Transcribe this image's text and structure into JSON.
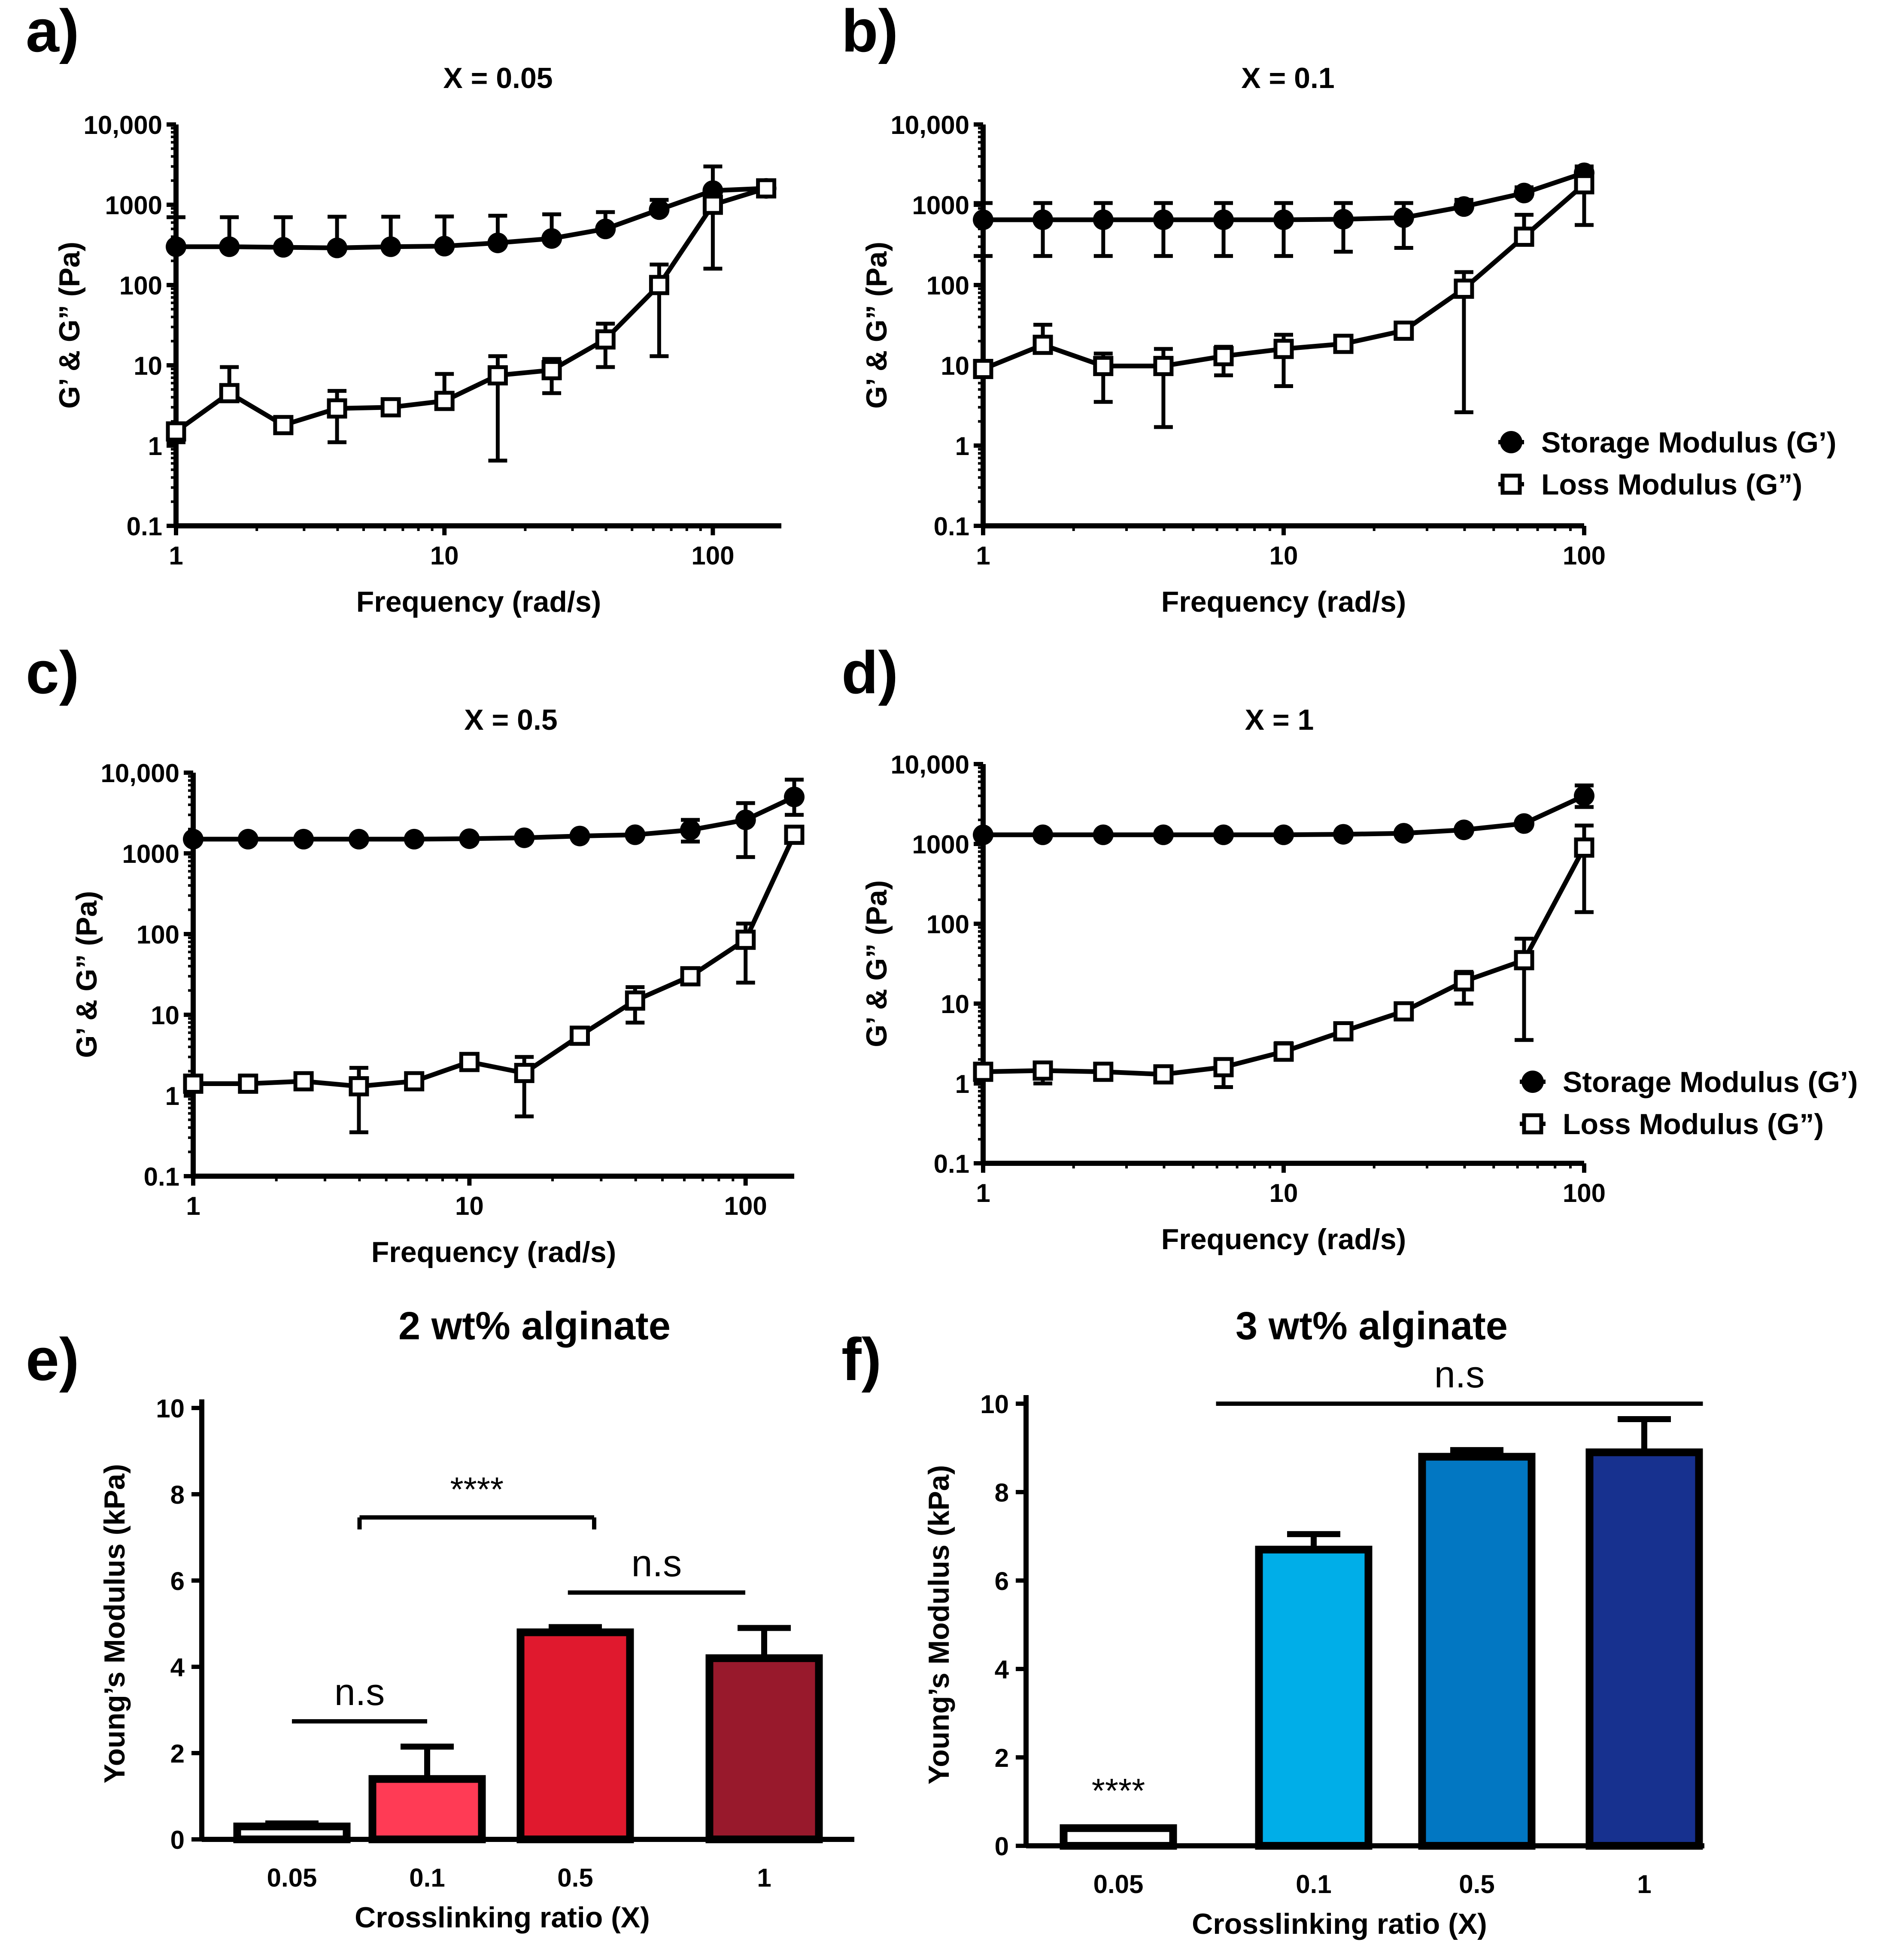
{
  "chart_data": [
    {
      "type": "line",
      "panel_label": "a)",
      "title": "X = 0.05",
      "xlabel": "Frequency (rad/s)",
      "ylabel": "G’ & G” (Pa)",
      "x_scale": "log",
      "y_scale": "log",
      "xlim": [
        1,
        180
      ],
      "ylim": [
        0.1,
        10000
      ],
      "x_ticks": [
        1,
        10,
        100
      ],
      "x_tick_labels": [
        "1",
        "10",
        "100"
      ],
      "y_ticks": [
        0.1,
        1,
        10,
        100,
        1000,
        10000
      ],
      "y_tick_labels": [
        "0.1",
        "1",
        "10",
        "100",
        "1000",
        "10,000"
      ],
      "x": [
        1,
        1.58,
        2.51,
        3.98,
        6.31,
        10,
        15.8,
        25.1,
        39.8,
        63.1,
        100,
        158
      ],
      "series": [
        {
          "name": "Storage Modulus (G’)",
          "marker": "filled-circle",
          "values": [
            300,
            300,
            295,
            290,
            300,
            305,
            335,
            380,
            500,
            870,
            1500,
            1600
          ],
          "error_up": [
            700,
            700,
            700,
            710,
            710,
            715,
            730,
            760,
            810,
            1150,
            1550,
            1500
          ],
          "error_down": null
        },
        {
          "name": "Loss Modulus (G”)",
          "marker": "open-square",
          "values": [
            1.5,
            4.5,
            1.8,
            2.9,
            3.0,
            3.6,
            7.5,
            8.7,
            21,
            100,
            1000,
            1600
          ],
          "error_up": [
            0,
            9.5,
            0,
            4.8,
            0,
            7.8,
            13,
            12,
            33,
            180,
            3000,
            0
          ],
          "error_down": [
            1.1,
            0,
            0,
            1.1,
            0,
            0,
            0.65,
            4.5,
            9.5,
            13,
            160,
            0
          ]
        }
      ]
    },
    {
      "type": "line",
      "panel_label": "b)",
      "title": "X = 0.1",
      "xlabel": "Frequency (rad/s)",
      "ylabel": "G’ & G” (Pa)",
      "x_scale": "log",
      "y_scale": "log",
      "xlim": [
        1,
        100
      ],
      "ylim": [
        0.1,
        10000
      ],
      "x_ticks": [
        1,
        10,
        100
      ],
      "x_tick_labels": [
        "1",
        "10",
        "100"
      ],
      "y_ticks": [
        0.1,
        1,
        10,
        100,
        1000,
        10000
      ],
      "y_tick_labels": [
        "0.1",
        "1",
        "10",
        "100",
        "1000",
        "10,000"
      ],
      "x": [
        1,
        1.58,
        2.51,
        3.98,
        6.31,
        10,
        15.8,
        25.1,
        39.8,
        63.1,
        100
      ],
      "legend": [
        "Storage Modulus (G’)",
        "Loss Modulus (G”)"
      ],
      "legend_position": "right",
      "series": [
        {
          "name": "Storage Modulus (G’)",
          "marker": "filled-circle",
          "values": [
            650,
            650,
            650,
            650,
            650,
            650,
            660,
            690,
            950,
            1400,
            2500
          ],
          "error_up": [
            1050,
            1050,
            1050,
            1050,
            1050,
            1050,
            1050,
            1050,
            1150,
            1650,
            3000
          ],
          "error_down": [
            230,
            230,
            230,
            230,
            230,
            230,
            260,
            290,
            900,
            1300,
            2200
          ]
        },
        {
          "name": "Loss Modulus (G”)",
          "marker": "open-square",
          "values": [
            9,
            18,
            9.8,
            9.8,
            13,
            16,
            18.5,
            27,
            90,
            400,
            1800
          ],
          "error_up": [
            0,
            32,
            14,
            16,
            17,
            24,
            0,
            0,
            145,
            750,
            2800
          ],
          "error_down": [
            0,
            0,
            3.5,
            1.7,
            7.5,
            5.5,
            0,
            0,
            2.6,
            0,
            560
          ]
        }
      ]
    },
    {
      "type": "line",
      "panel_label": "c)",
      "title": "X = 0.5",
      "xlabel": "Frequency (rad/s)",
      "ylabel": "G’ & G” (Pa)",
      "x_scale": "log",
      "y_scale": "log",
      "xlim": [
        1,
        150
      ],
      "ylim": [
        0.1,
        10000
      ],
      "x_ticks": [
        1,
        10,
        100
      ],
      "x_tick_labels": [
        "1",
        "10",
        "100"
      ],
      "y_ticks": [
        0.1,
        1,
        10,
        100,
        1000,
        10000
      ],
      "y_tick_labels": [
        "0.1",
        "1",
        "10",
        "100",
        "1000",
        "10,000"
      ],
      "x": [
        1,
        1.58,
        2.51,
        3.98,
        6.31,
        10,
        15.8,
        25.1,
        39.8,
        63.1,
        100,
        150
      ],
      "series": [
        {
          "name": "Storage Modulus (G’)",
          "marker": "filled-circle",
          "values": [
            1500,
            1500,
            1500,
            1500,
            1500,
            1520,
            1560,
            1640,
            1700,
            1950,
            2600,
            5000
          ],
          "error_up": [
            0,
            0,
            0,
            0,
            0,
            0,
            0,
            0,
            0,
            2600,
            4200,
            8200
          ],
          "error_down": [
            0,
            0,
            0,
            0,
            0,
            0,
            0,
            0,
            0,
            1400,
            900,
            3000
          ]
        },
        {
          "name": "Loss Modulus (G”)",
          "marker": "open-square",
          "values": [
            1.4,
            1.4,
            1.5,
            1.3,
            1.5,
            2.6,
            1.9,
            5.5,
            15,
            30,
            85,
            1700
          ],
          "error_up": [
            0,
            0,
            1.6,
            2.2,
            1.6,
            0,
            3.0,
            0,
            22,
            0,
            135,
            0
          ],
          "error_down": [
            0,
            0,
            1.2,
            0.35,
            0,
            0,
            0.55,
            0,
            8,
            0,
            25,
            0
          ]
        }
      ]
    },
    {
      "type": "line",
      "panel_label": "d)",
      "title": "X = 1",
      "xlabel": "Frequency (rad/s)",
      "ylabel": "G’ & G” (Pa)",
      "x_scale": "log",
      "y_scale": "log",
      "xlim": [
        1,
        100
      ],
      "ylim": [
        0.1,
        10000
      ],
      "x_ticks": [
        1,
        10,
        100
      ],
      "x_tick_labels": [
        "1",
        "10",
        "100"
      ],
      "y_ticks": [
        0.1,
        1,
        10,
        100,
        1000,
        10000
      ],
      "y_tick_labels": [
        "0.1",
        "1",
        "10",
        "100",
        "1000",
        "10,000"
      ],
      "x": [
        1,
        1.58,
        2.51,
        3.98,
        6.31,
        10,
        15.8,
        25.1,
        39.8,
        63.1,
        100
      ],
      "legend": [
        "Storage Modulus (G’)",
        "Loss Modulus (G”)"
      ],
      "legend_position": "right",
      "series": [
        {
          "name": "Storage Modulus (G’)",
          "marker": "filled-circle",
          "values": [
            1300,
            1300,
            1300,
            1300,
            1300,
            1300,
            1320,
            1360,
            1500,
            1800,
            4000
          ],
          "error_up": [
            0,
            0,
            0,
            0,
            0,
            0,
            0,
            0,
            0,
            0,
            5400
          ],
          "error_down": [
            0,
            0,
            0,
            0,
            0,
            0,
            0,
            0,
            0,
            0,
            2900
          ]
        },
        {
          "name": "Loss Modulus (G”)",
          "marker": "open-square",
          "values": [
            1.4,
            1.45,
            1.4,
            1.3,
            1.6,
            2.5,
            4.5,
            8,
            19,
            35,
            900
          ],
          "error_up": [
            0,
            0,
            0,
            0,
            0,
            3.2,
            5.5,
            10,
            25,
            65,
            1700
          ],
          "error_down": [
            0,
            1.0,
            0,
            0,
            0.9,
            0,
            0,
            0,
            10,
            3.5,
            140
          ]
        }
      ]
    },
    {
      "type": "bar",
      "panel_label": "e)",
      "title": "2 wt% alginate",
      "xlabel": "Crosslinking ratio (X)",
      "ylabel": "Young’s Modulus (kPa)",
      "ylim": [
        0,
        10
      ],
      "y_ticks": [
        0,
        2,
        4,
        6,
        8,
        10
      ],
      "y_tick_labels": [
        "0",
        "2",
        "4",
        "6",
        "8",
        "10"
      ],
      "categories": [
        "0.05",
        "0.1",
        "0.5",
        "1"
      ],
      "values": [
        0.3,
        1.4,
        4.8,
        4.2
      ],
      "errors": [
        0.07,
        0.75,
        0.12,
        0.7
      ],
      "colors": [
        "#ffffff",
        "#ff3b55",
        "#e0192e",
        "#98192c"
      ],
      "significance": [
        {
          "label": "n.s",
          "from": 0,
          "to": 1,
          "style": "line"
        },
        {
          "label": "****",
          "from": 0.5,
          "to": 2.1,
          "style": "bracket"
        },
        {
          "label": "n.s",
          "from": 1.95,
          "to": 2.9,
          "style": "line"
        }
      ]
    },
    {
      "type": "bar",
      "panel_label": "f)",
      "title": "3 wt% alginate",
      "xlabel": "Crosslinking ratio (X)",
      "ylabel": "Young’s Modulus (kPa)",
      "ylim": [
        0,
        10
      ],
      "y_ticks": [
        0,
        2,
        4,
        6,
        8,
        10
      ],
      "y_tick_labels": [
        "0",
        "2",
        "4",
        "6",
        "8",
        "10"
      ],
      "categories": [
        "0.05",
        "0.1",
        "0.5",
        "1"
      ],
      "values": [
        0.4,
        6.7,
        8.8,
        8.9
      ],
      "errors": [
        0,
        0.35,
        0.15,
        0.75
      ],
      "colors": [
        "#ffffff",
        "#00aee8",
        "#0277c2",
        "#17318f"
      ],
      "significance": [
        {
          "label": "****",
          "on_bar": 0
        },
        {
          "label": "n.s",
          "from": 0.5,
          "to": 3.3,
          "style": "line"
        }
      ]
    }
  ]
}
